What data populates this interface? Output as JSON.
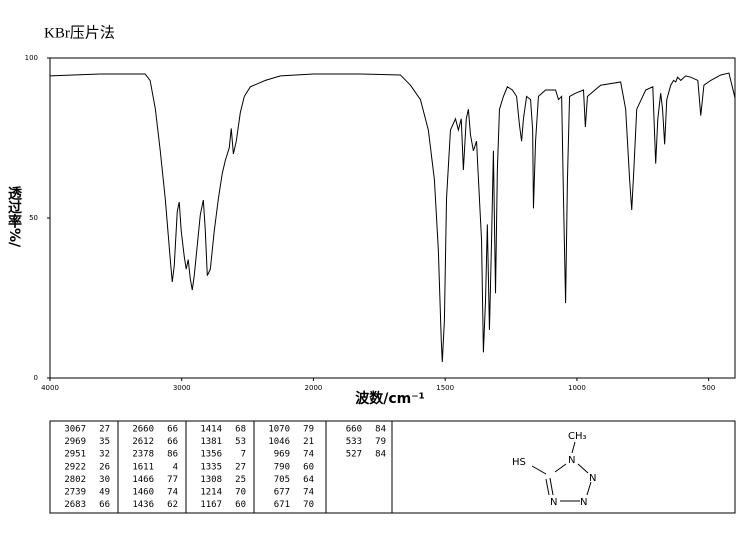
{
  "chart_data": {
    "type": "line",
    "title": "KBr压片法",
    "xlabel": "波数/cm⁻¹",
    "ylabel": "透过率%/",
    "xlim": [
      4000,
      400
    ],
    "x_scale_break": 2000,
    "x_scale_factor": 2,
    "ylim": [
      0,
      100
    ],
    "xticks": [
      4000,
      3000,
      2000,
      1500,
      1000,
      500
    ],
    "yticks": [
      0,
      50,
      100
    ],
    "series": [
      {
        "color": "#000000",
        "x": [
          4000,
          3620,
          3278,
          3240,
          3200,
          3163,
          3125,
          3087,
          3072,
          3057,
          3034,
          3019,
          3004,
          2981,
          2966,
          2951,
          2935,
          2920,
          2905,
          2882,
          2859,
          2836,
          2821,
          2806,
          2783,
          2753,
          2722,
          2692,
          2669,
          2639,
          2624,
          2608,
          2586,
          2555,
          2525,
          2479,
          2365,
          2251,
          2000,
          1822,
          1670,
          1632,
          1594,
          1564,
          1541,
          1526,
          1515,
          1511,
          1503,
          1495,
          1480,
          1461,
          1450,
          1439,
          1431,
          1420,
          1412,
          1404,
          1393,
          1381,
          1370,
          1362,
          1355,
          1347,
          1340,
          1332,
          1324,
          1317,
          1309,
          1302,
          1294,
          1279,
          1264,
          1245,
          1229,
          1218,
          1210,
          1203,
          1191,
          1176,
          1168,
          1165,
          1157,
          1146,
          1119,
          1081,
          1070,
          1058,
          1051,
          1043,
          1036,
          1028,
          1005,
          975,
          968,
          960,
          910,
          834,
          815,
          800,
          792,
          784,
          773,
          739,
          712,
          701,
          693,
          682,
          675,
          667,
          659,
          644,
          633,
          625,
          618,
          606,
          587,
          568,
          541,
          530,
          518,
          492,
          454,
          423,
          400
        ],
        "values": [
          94.4,
          95,
          95,
          93,
          84,
          71,
          56,
          37,
          30,
          35,
          52,
          55,
          46,
          38,
          34,
          37,
          31,
          27.5,
          32,
          41.5,
          51,
          55.6,
          46,
          32,
          34,
          46,
          56,
          64,
          68,
          72,
          78,
          70,
          74,
          83,
          88,
          91,
          93,
          94.4,
          95,
          95,
          94.7,
          91.5,
          87,
          77.5,
          62,
          40,
          12,
          5,
          18,
          56,
          77.5,
          81,
          77.5,
          81,
          65,
          81,
          84,
          76,
          71,
          74,
          56,
          43,
          8,
          24,
          48,
          15,
          43,
          71,
          26.5,
          65,
          84,
          88,
          91,
          90,
          88,
          79,
          74,
          81,
          88,
          87,
          77.5,
          53,
          74,
          88,
          90,
          90,
          87,
          88,
          56,
          23.4,
          62,
          88,
          89,
          90,
          78.4,
          88,
          91.5,
          92.5,
          84,
          62,
          52.5,
          65,
          84,
          90,
          91,
          67,
          81,
          89,
          84,
          73,
          87,
          91.5,
          93,
          92.5,
          94,
          93,
          94.4,
          94,
          93,
          82,
          91.5,
          93,
          94.7,
          95.3,
          87.5
        ]
      }
    ]
  },
  "peak_table": {
    "columns": [
      [
        [
          "3067",
          "27"
        ],
        [
          "2969",
          "35"
        ],
        [
          "2951",
          "32"
        ],
        [
          "2922",
          "26"
        ],
        [
          "2802",
          "30"
        ],
        [
          "2739",
          "49"
        ],
        [
          "2683",
          "66"
        ]
      ],
      [
        [
          "2660",
          "66"
        ],
        [
          "2612",
          "66"
        ],
        [
          "2378",
          "86"
        ],
        [
          "1611",
          "4"
        ],
        [
          "1466",
          "77"
        ],
        [
          "1460",
          "74"
        ],
        [
          "1436",
          "62"
        ]
      ],
      [
        [
          "1414",
          "68"
        ],
        [
          "1381",
          "53"
        ],
        [
          "1356",
          "7"
        ],
        [
          "1335",
          "27"
        ],
        [
          "1308",
          "25"
        ],
        [
          "1214",
          "70"
        ],
        [
          "1167",
          "60"
        ]
      ],
      [
        [
          "1070",
          "79"
        ],
        [
          "1046",
          "21"
        ],
        [
          "969",
          "74"
        ],
        [
          "790",
          "60"
        ],
        [
          "705",
          "64"
        ],
        [
          "677",
          "74"
        ],
        [
          "671",
          "70"
        ]
      ],
      [
        [
          "660",
          "84"
        ],
        [
          "533",
          "79"
        ],
        [
          "527",
          "84"
        ]
      ]
    ]
  },
  "structure": {
    "atoms": [
      "CH₃",
      "HS",
      "N",
      "N",
      "N",
      "N"
    ]
  }
}
